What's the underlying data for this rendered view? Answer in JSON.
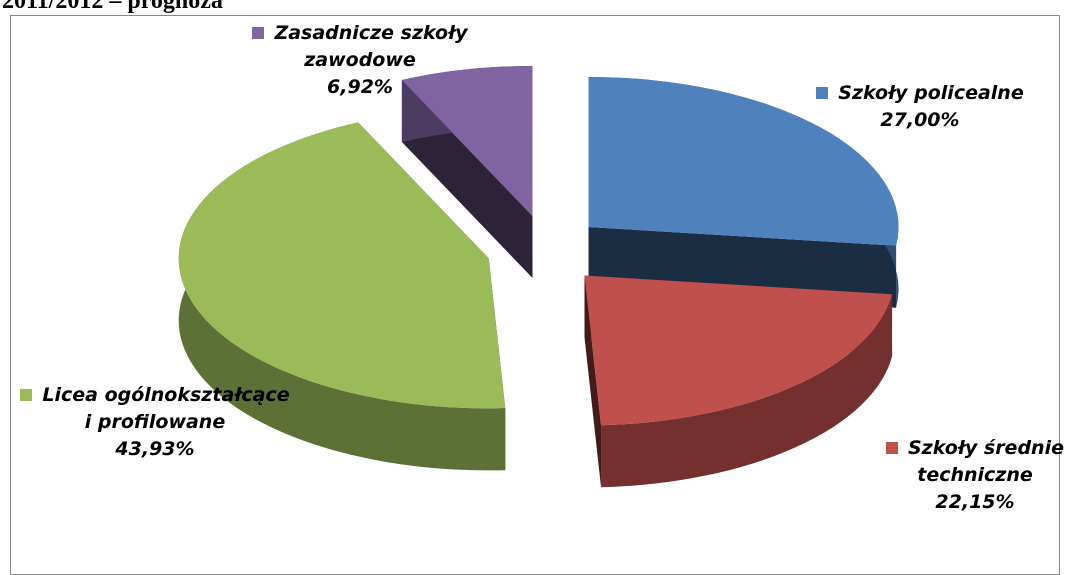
{
  "chart_data": {
    "type": "pie",
    "title": "2011/2012 – prognoza",
    "categories": [
      "Szkoły policealne",
      "Szkoły średnie techniczne",
      "Licea ogólnokształcące i profilowane",
      "Zasadnicze szkoły zawodowe"
    ],
    "values": [
      27.0,
      22.15,
      43.93,
      6.92
    ],
    "value_labels": [
      "27,00%",
      "22,15%",
      "43,93%",
      "6,92%"
    ],
    "colors": [
      "#4f81bd",
      "#c0504d",
      "#9bbb59",
      "#8064a2"
    ]
  }
}
